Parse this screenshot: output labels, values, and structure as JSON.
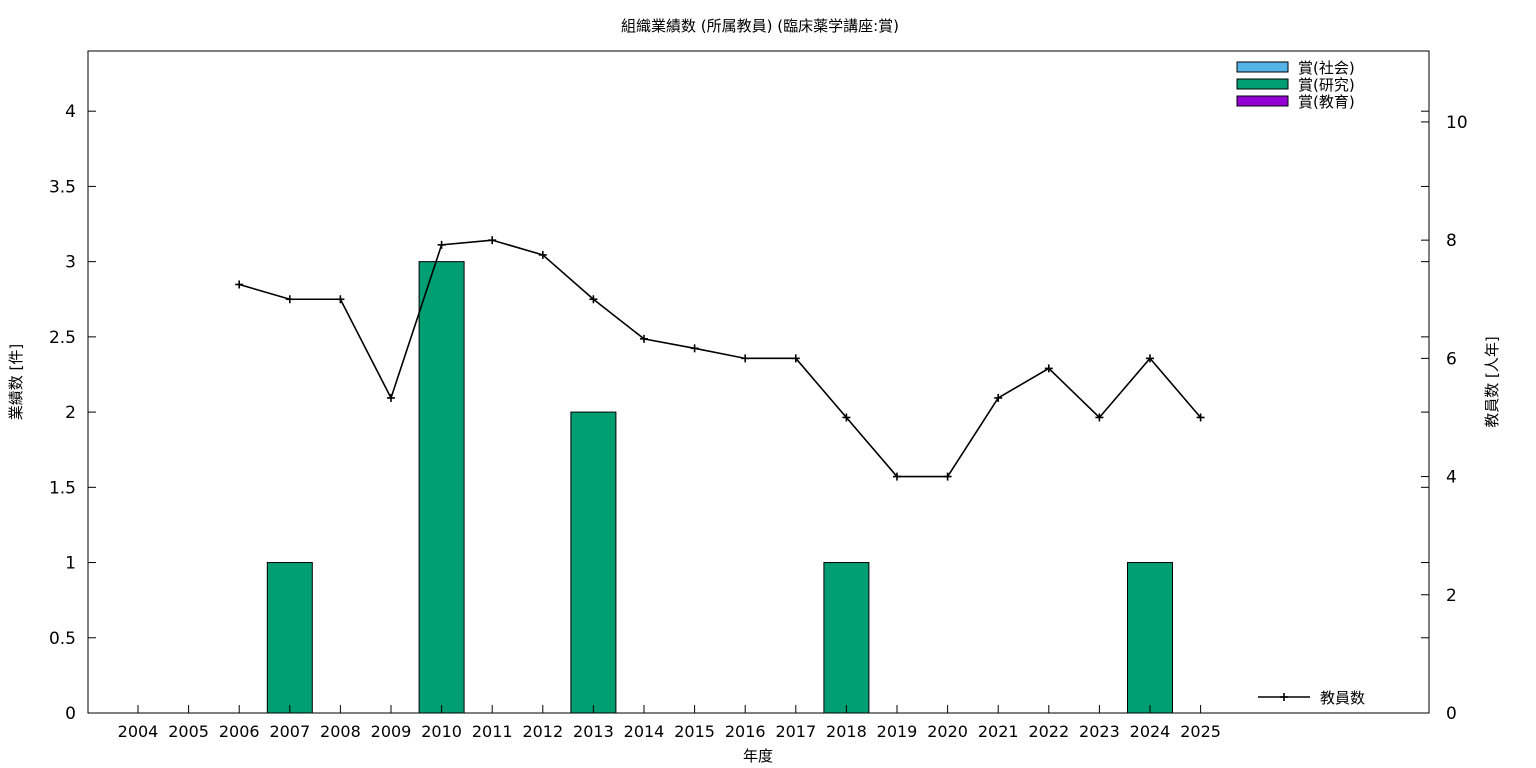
{
  "chart_data": {
    "type": "bar",
    "title": "組織業績数 (所属教員) (臨床薬学講座:賞)",
    "xlabel": "年度",
    "ylabel": "業績数 [件]",
    "y2label": "教員数 [人年]",
    "categories": [
      "2004",
      "2005",
      "2006",
      "2007",
      "2008",
      "2009",
      "2010",
      "2011",
      "2012",
      "2013",
      "2014",
      "2015",
      "2016",
      "2017",
      "2018",
      "2019",
      "2020",
      "2021",
      "2022",
      "2023",
      "2024",
      "2025"
    ],
    "ylim": [
      0,
      4.4
    ],
    "y2lim": [
      0,
      11.2
    ],
    "yticks": [
      "0",
      "0.5",
      "1",
      "1.5",
      "2",
      "2.5",
      "3",
      "3.5",
      "4"
    ],
    "y2ticks": [
      "0",
      "2",
      "4",
      "6",
      "8",
      "10"
    ],
    "series": [
      {
        "name": "賞(社会)",
        "kind": "bar",
        "color": "#56b4e9",
        "values": [
          0,
          0,
          0,
          0,
          0,
          0,
          0,
          0,
          0,
          0,
          0,
          0,
          0,
          0,
          0,
          0,
          0,
          0,
          0,
          0,
          0,
          0
        ]
      },
      {
        "name": "賞(研究)",
        "kind": "bar",
        "color": "#009e73",
        "values": [
          0,
          0,
          0,
          1,
          0,
          0,
          3,
          0,
          0,
          2,
          0,
          0,
          0,
          0,
          1,
          0,
          0,
          0,
          0,
          0,
          1,
          0
        ]
      },
      {
        "name": "賞(教育)",
        "kind": "bar",
        "color": "#9400d3",
        "values": [
          0,
          0,
          0,
          0,
          0,
          0,
          0,
          0,
          0,
          0,
          0,
          0,
          0,
          0,
          0,
          0,
          0,
          0,
          0,
          0,
          0,
          0
        ]
      },
      {
        "name": "教員数",
        "kind": "line",
        "axis": "y2",
        "color": "#000000",
        "values": [
          null,
          null,
          7.25,
          7.0,
          7.0,
          5.33,
          7.92,
          8.0,
          7.75,
          7.0,
          6.33,
          6.17,
          6.0,
          6.0,
          5.0,
          4.0,
          4.0,
          5.33,
          5.83,
          5.0,
          6.0,
          5.0
        ]
      }
    ],
    "legend_position": "top-right",
    "grid": false
  }
}
